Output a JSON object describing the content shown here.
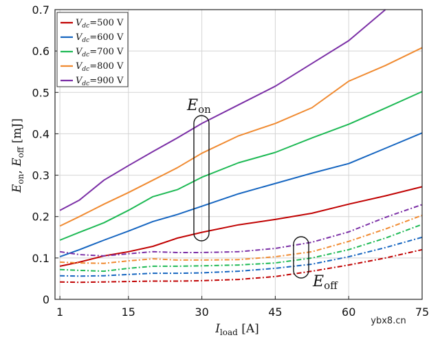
{
  "chart_data": {
    "type": "line",
    "x": [
      1,
      5,
      10,
      15,
      20,
      25,
      30,
      37.5,
      45,
      52.5,
      60,
      67.5,
      75
    ],
    "xlabel": "I_load [A]",
    "ylabel": "E_on, E_off [mJ]",
    "xlim": [
      0,
      75
    ],
    "ylim": [
      0,
      0.7
    ],
    "xticks": [
      1,
      15,
      30,
      45,
      60,
      75
    ],
    "xtick_labels": [
      "1",
      "15",
      "30",
      "45",
      "60",
      "75"
    ],
    "yticks": [
      0,
      0.1,
      0.2,
      0.3,
      0.4,
      0.5,
      0.6,
      0.7
    ],
    "ytick_labels": [
      "0",
      "0.1",
      "0.2",
      "0.3",
      "0.4",
      "0.5",
      "0.6",
      "0.7"
    ],
    "grid": true,
    "legend_position": "top-left",
    "series": [
      {
        "name": "Vdc=500 V (E_on)",
        "legend": "=500 V",
        "color": "#c00000",
        "dash": "solid",
        "values": [
          0.08,
          0.09,
          0.105,
          0.115,
          0.128,
          0.148,
          0.162,
          0.18,
          0.193,
          0.208,
          0.23,
          0.25,
          0.272
        ]
      },
      {
        "name": "Vdc=600 V (E_on)",
        "legend": "=600 V",
        "color": "#1565c0",
        "dash": "solid",
        "values": [
          0.103,
          0.12,
          0.143,
          0.165,
          0.188,
          0.205,
          0.225,
          0.255,
          0.28,
          0.305,
          0.328,
          0.365,
          0.402
        ]
      },
      {
        "name": "Vdc=700 V (E_on)",
        "legend": "=700 V",
        "color": "#1db954",
        "dash": "solid",
        "values": [
          0.143,
          0.162,
          0.185,
          0.215,
          0.248,
          0.265,
          0.295,
          0.33,
          0.355,
          0.39,
          0.423,
          0.462,
          0.502
        ]
      },
      {
        "name": "Vdc=800 V (E_on)",
        "legend": "=800 V",
        "color": "#f08a30",
        "dash": "solid",
        "values": [
          0.177,
          0.2,
          0.23,
          0.258,
          0.288,
          0.318,
          0.353,
          0.395,
          0.425,
          0.463,
          0.527,
          0.565,
          0.608
        ]
      },
      {
        "name": "Vdc=900 V (E_on)",
        "legend": "=900 V",
        "color": "#7b2fa6",
        "dash": "solid",
        "values": [
          0.215,
          0.24,
          0.288,
          0.323,
          0.357,
          0.39,
          0.425,
          0.47,
          0.515,
          0.57,
          0.625,
          0.7,
          null
        ]
      },
      {
        "name": "Vdc=500 V (E_off)",
        "color": "#c00000",
        "dash": "dashdot",
        "values": [
          0.042,
          0.041,
          0.042,
          0.043,
          0.044,
          0.044,
          0.045,
          0.048,
          0.055,
          0.068,
          0.083,
          0.1,
          0.12
        ]
      },
      {
        "name": "Vdc=600 V (E_off)",
        "color": "#1565c0",
        "dash": "dashdot",
        "values": [
          0.057,
          0.056,
          0.057,
          0.06,
          0.063,
          0.063,
          0.064,
          0.068,
          0.075,
          0.085,
          0.103,
          0.125,
          0.15
        ]
      },
      {
        "name": "Vdc=700 V (E_off)",
        "color": "#1db954",
        "dash": "dashdot",
        "values": [
          0.072,
          0.07,
          0.068,
          0.075,
          0.08,
          0.08,
          0.081,
          0.083,
          0.088,
          0.1,
          0.12,
          0.148,
          0.181
        ]
      },
      {
        "name": "Vdc=800 V (E_off)",
        "color": "#f08a30",
        "dash": "dashdot",
        "values": [
          0.09,
          0.088,
          0.087,
          0.093,
          0.098,
          0.095,
          0.095,
          0.096,
          0.103,
          0.115,
          0.14,
          0.17,
          0.203
        ]
      },
      {
        "name": "Vdc=900 V (E_off)",
        "color": "#7b2fa6",
        "dash": "dashdot",
        "values": [
          0.115,
          0.108,
          0.105,
          0.11,
          0.115,
          0.113,
          0.113,
          0.115,
          0.123,
          0.138,
          0.163,
          0.198,
          0.229
        ]
      }
    ],
    "annotations": [
      {
        "text_main": "E",
        "text_sub": "on",
        "target": "E_on curves near I_load = 30 A"
      },
      {
        "text_main": "E",
        "text_sub": "off",
        "target": "E_off curves near I_load = 52 A"
      }
    ],
    "legend_prefix_main": "V",
    "legend_prefix_sub": "dc"
  },
  "labels": {
    "ylabel_main1": "E",
    "ylabel_sub1": "on",
    "ylabel_sep": ", ",
    "ylabel_main2": "E",
    "ylabel_sub2": "off",
    "ylabel_unit": " [mJ]",
    "xlabel_main": "I",
    "xlabel_sub": "load",
    "xlabel_unit": " [A]"
  },
  "watermark": "ybx8.cn"
}
